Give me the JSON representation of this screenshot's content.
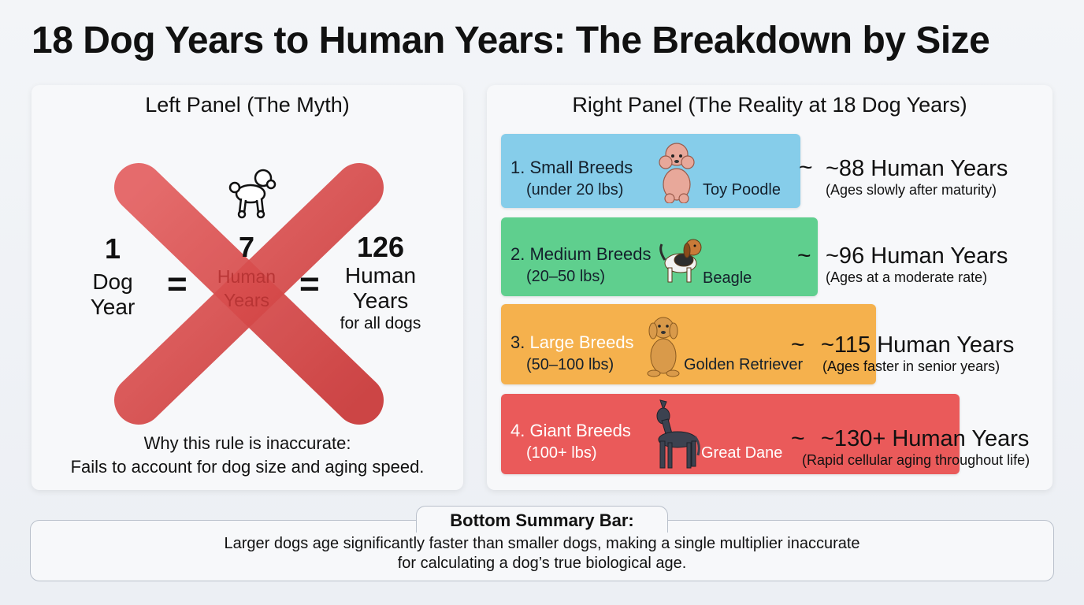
{
  "title": "18 Dog Years to Human Years: The Breakdown by Size",
  "left_panel": {
    "title": "Left Panel (The Myth)",
    "equation": {
      "dog_number": "1",
      "dog_line1": "Dog",
      "dog_line2": "Year",
      "equals": "=",
      "mid_number": "7",
      "mid_line1": "Human",
      "mid_line2": "Years",
      "result_number": "126",
      "result_line1": "Human",
      "result_line2": "Years",
      "result_note": "for all dogs"
    },
    "why_line1": "Why this rule is inaccurate:",
    "why_line2": "Fails to account for dog size and aging speed."
  },
  "right_panel": {
    "title": "Right Panel (The Reality at 18 Dog Years)",
    "breeds": [
      {
        "name": "1. Small Breeds",
        "range": "(under 20 lbs)",
        "dog": "Toy Poodle",
        "tilde": "~",
        "result": "~88 Human Years",
        "note": "(Ages slowly after maturity)",
        "color": "#86cdea"
      },
      {
        "name": "2. Medium Breeds",
        "range": "(20–50 lbs)",
        "dog": "Beagle",
        "tilde": "~",
        "result": "~96 Human Years",
        "note": "(Ages at a moderate rate)",
        "color": "#5fcf8e"
      },
      {
        "name_prefix": "3. ",
        "name": "Large Breeds",
        "range": "(50–100 lbs)",
        "dog": "Golden Retriever",
        "tilde": "~",
        "result_number": "~115",
        "result_unit": "Human Years",
        "note": "(Ages faster in senior years)",
        "color": "#f5b14d"
      },
      {
        "name": "4. Giant Breeds",
        "range": "(100+ lbs)",
        "dog": "Great Dane",
        "tilde": "~",
        "result": "~130+ Human Years",
        "note": "(Rapid cellular aging throughout life)",
        "color": "#ea5a5a"
      }
    ]
  },
  "bottom": {
    "title": "Bottom Summary Bar:",
    "line1": "Larger dogs age significantly faster than smaller dogs, making a single multiplier inaccurate",
    "line2": "for calculating a dog’s true biological age."
  },
  "colors": {
    "cross": "#d64545",
    "small": "#86cdea",
    "medium": "#5fcf8e",
    "large": "#f5b14d",
    "giant": "#ea5a5a"
  }
}
